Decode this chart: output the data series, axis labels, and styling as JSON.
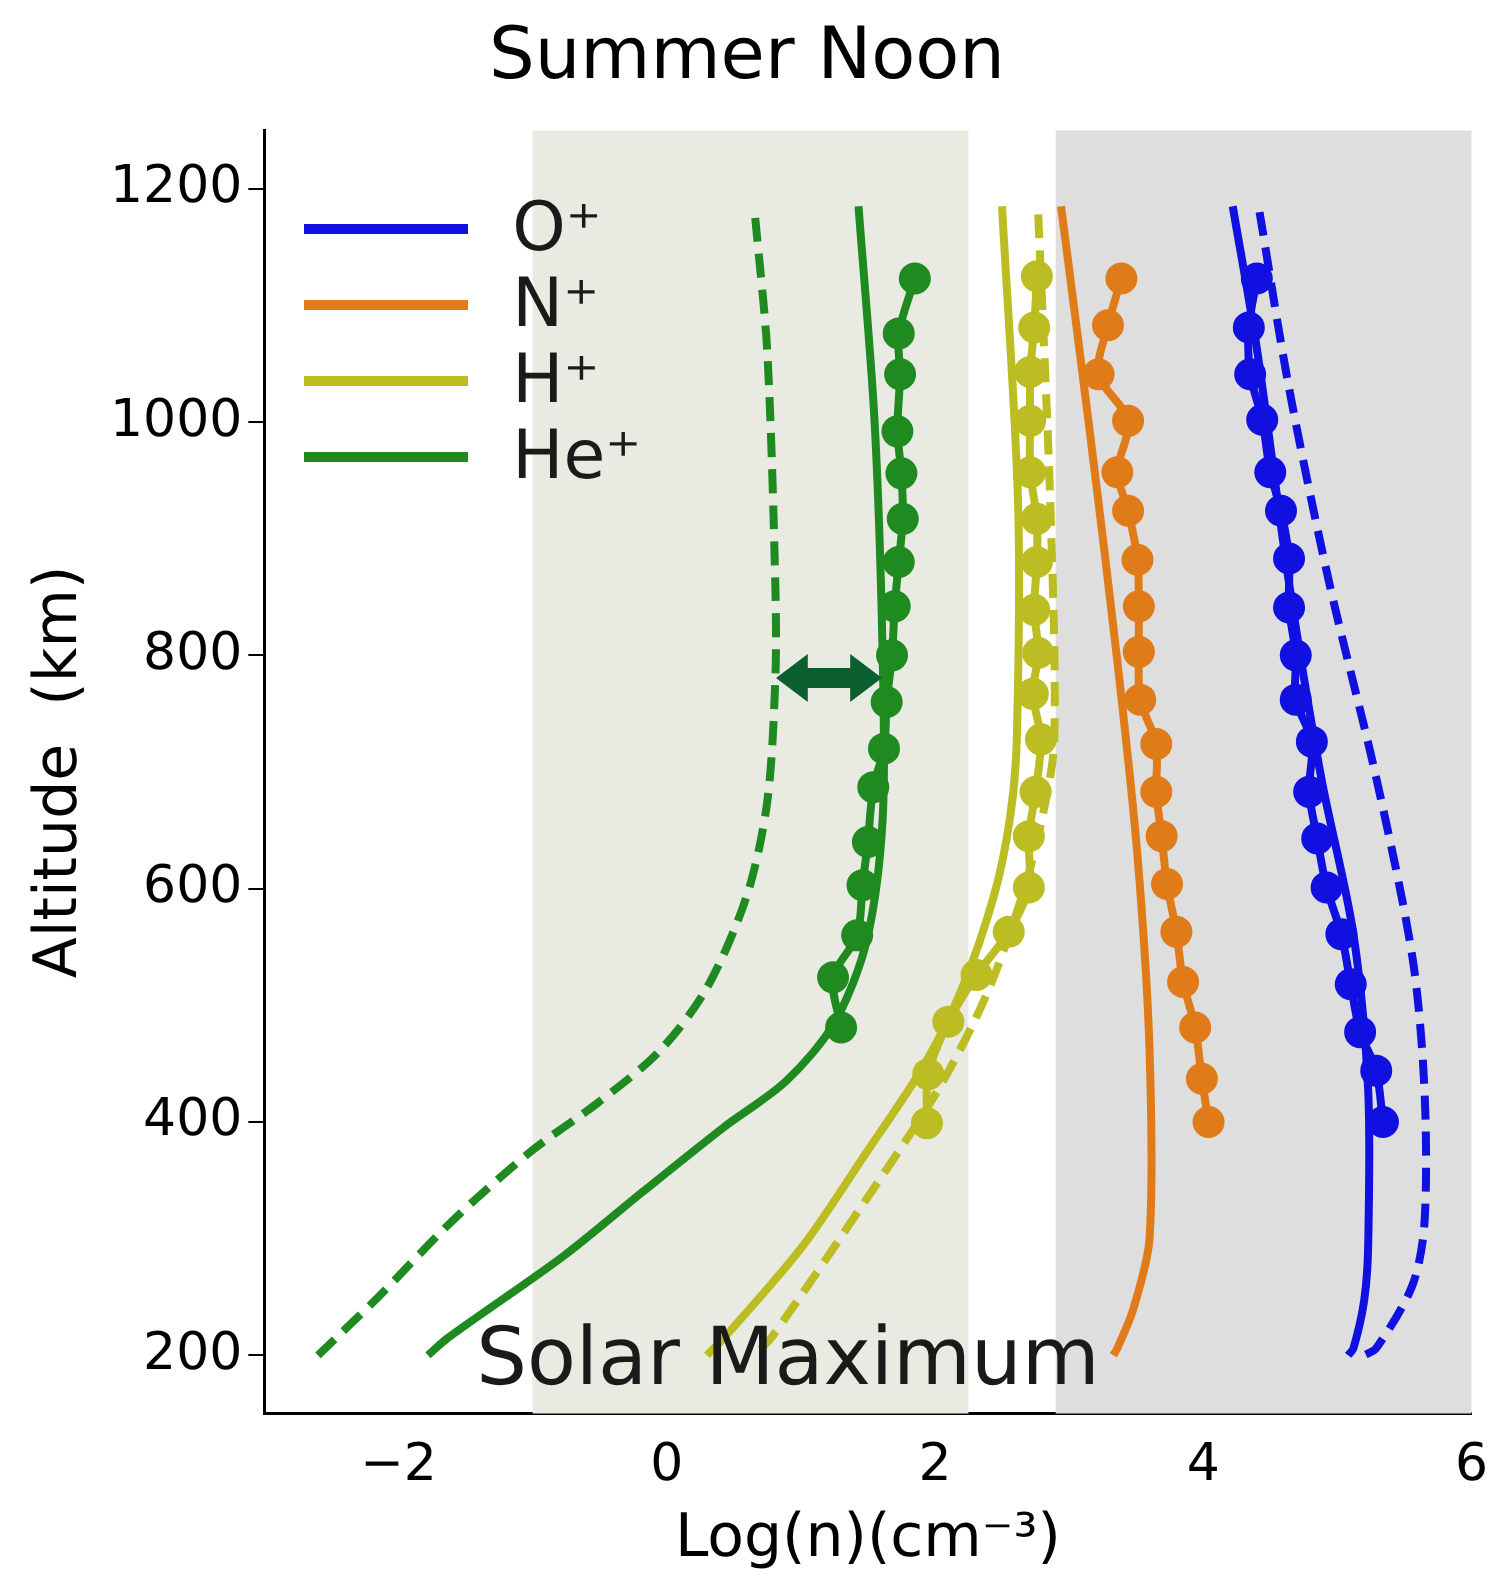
{
  "chart_data": {
    "type": "line",
    "title": "Summer Noon",
    "xlabel": "Log(n)(cm⁻³)",
    "ylabel": "Altitude  (km)",
    "xlim": [
      -3,
      6
    ],
    "xticks": [
      -2,
      0,
      2,
      4,
      6
    ],
    "ylim": [
      150,
      1250
    ],
    "yticks": [
      200,
      400,
      600,
      800,
      1000,
      1200
    ],
    "grid": false,
    "legend": "top left",
    "marker": "none",
    "line_style": "solid",
    "annotations": [
      "Solar Maximum"
    ],
    "bands": [
      {
        "axis": "x",
        "from": -1,
        "to": 2.25,
        "color": "#e9ebe3"
      },
      {
        "axis": "x",
        "from": 2.9,
        "to": 6,
        "color": "#dedede"
      }
    ],
    "series": [
      {
        "name": "O⁺",
        "color": "#1010e0",
        "x": [
          4.22,
          4.4,
          4.64,
          4.88,
          5.12,
          5.23,
          5.23,
          5.2,
          5.12,
          5.08
        ],
        "values": [
          1185,
          1063,
          862,
          695,
          561,
          427,
          294,
          247,
          206,
          200
        ]
      },
      {
        "name": "N⁺",
        "color": "#e07b1a",
        "x": [
          2.94,
          3.15,
          3.36,
          3.51,
          3.6,
          3.6,
          3.48,
          3.36,
          3.33
        ],
        "values": [
          1185,
          996,
          795,
          628,
          461,
          300,
          240,
          206,
          200
        ]
      },
      {
        "name": "H⁺",
        "color": "#bcbd22",
        "x": [
          2.5,
          2.62,
          2.61,
          2.56,
          2.44,
          2.2,
          1.91,
          1.49,
          1.01,
          0.42,
          0.3
        ],
        "values": [
          1185,
          929,
          728,
          661,
          594,
          514,
          447,
          374,
          293,
          214,
          200
        ]
      },
      {
        "name": "He⁺",
        "color": "#1f8a1f",
        "x": [
          1.43,
          1.55,
          1.61,
          1.61,
          1.49,
          1.25,
          0.89,
          0.42,
          -0.18,
          -0.77,
          -1.63,
          -1.78
        ],
        "values": [
          1185,
          1000,
          800,
          660,
          555,
          485,
          435,
          395,
          340,
          285,
          215,
          200
        ]
      },
      {
        "color": "#1010e0",
        "line_style": "dashed",
        "x": [
          4.42,
          4.64,
          4.94,
          5.29,
          5.56,
          5.65,
          5.65,
          5.56,
          5.29,
          5.2
        ],
        "values": [
          1180,
          1029,
          862,
          695,
          541,
          427,
          314,
          260,
          206,
          200
        ]
      },
      {
        "color": "#bcbd22",
        "line_style": "dashed",
        "x": [
          2.77,
          2.86,
          2.89,
          2.8,
          2.65,
          2.38,
          2.02,
          1.49,
          0.78,
          0.65
        ],
        "values": [
          1178,
          929,
          728,
          661,
          594,
          508,
          427,
          334,
          215,
          200
        ]
      },
      {
        "color": "#1f8a1f",
        "line_style": "dashed",
        "x": [
          0.66,
          0.75,
          0.81,
          0.81,
          0.75,
          0.6,
          0.3,
          -0.06,
          -0.53,
          -1.01,
          -1.6,
          -2.15,
          -2.6
        ],
        "values": [
          1175,
          1060,
          860,
          780,
          675,
          595,
          515,
          460,
          415,
          375,
          315,
          250,
          200
        ]
      },
      {
        "color": "#1010e0",
        "marker": "circle",
        "x": [
          4.4,
          4.34,
          4.35,
          4.44,
          4.5,
          4.58,
          4.64,
          4.64,
          4.69,
          4.69,
          4.81,
          4.79,
          4.85,
          4.92,
          5.03,
          5.1,
          5.17,
          5.29,
          5.34
        ],
        "values": [
          1123,
          1081,
          1041,
          1002,
          957,
          924,
          883,
          841,
          800,
          762,
          726,
          683,
          643,
          601,
          561,
          518,
          477,
          444,
          400
        ]
      },
      {
        "color": "#e07b1a",
        "marker": "circle",
        "x": [
          3.39,
          3.29,
          3.22,
          3.44,
          3.36,
          3.44,
          3.51,
          3.52,
          3.52,
          3.53,
          3.65,
          3.65,
          3.69,
          3.73,
          3.8,
          3.85,
          3.94,
          3.99,
          4.04
        ],
        "values": [
          1123,
          1083,
          1041,
          1001,
          957,
          924,
          882,
          842,
          803,
          762,
          724,
          683,
          645,
          604,
          563,
          520,
          481,
          437,
          400
        ]
      },
      {
        "color": "#bcbd22",
        "marker": "circle",
        "x": [
          2.76,
          2.74,
          2.71,
          2.71,
          2.71,
          2.76,
          2.76,
          2.74,
          2.77,
          2.73,
          2.79,
          2.75,
          2.7,
          2.7,
          2.55,
          2.31,
          2.1,
          1.95,
          1.94
        ],
        "values": [
          1125,
          1081,
          1043,
          1001,
          957,
          917,
          880,
          839,
          802,
          767,
          728,
          683,
          645,
          601,
          563,
          526,
          486,
          441,
          399
        ]
      },
      {
        "color": "#1f8a1f",
        "marker": "circle",
        "x": [
          1.85,
          1.73,
          1.74,
          1.72,
          1.75,
          1.76,
          1.73,
          1.7,
          1.68,
          1.64,
          1.62,
          1.54,
          1.5,
          1.46,
          1.42,
          1.24,
          1.3
        ],
        "values": [
          1123,
          1076,
          1041,
          992,
          956,
          917,
          880,
          842,
          800,
          760,
          720,
          687,
          640,
          603,
          560,
          524,
          481
        ]
      }
    ]
  }
}
